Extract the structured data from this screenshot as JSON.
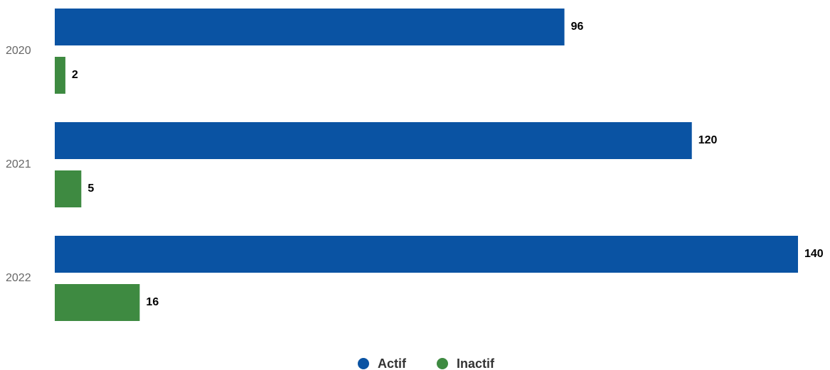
{
  "chart_data": {
    "type": "bar",
    "orientation": "horizontal",
    "categories": [
      "2020",
      "2021",
      "2022"
    ],
    "series": [
      {
        "name": "Actif",
        "values": [
          96,
          120,
          140
        ],
        "color": "#0a53a3"
      },
      {
        "name": "Inactif",
        "values": [
          2,
          5,
          16
        ],
        "color": "#3e8a41"
      }
    ],
    "xlim": [
      0,
      140
    ],
    "grid": false,
    "legend": "bottom-center",
    "data_labels": true
  }
}
